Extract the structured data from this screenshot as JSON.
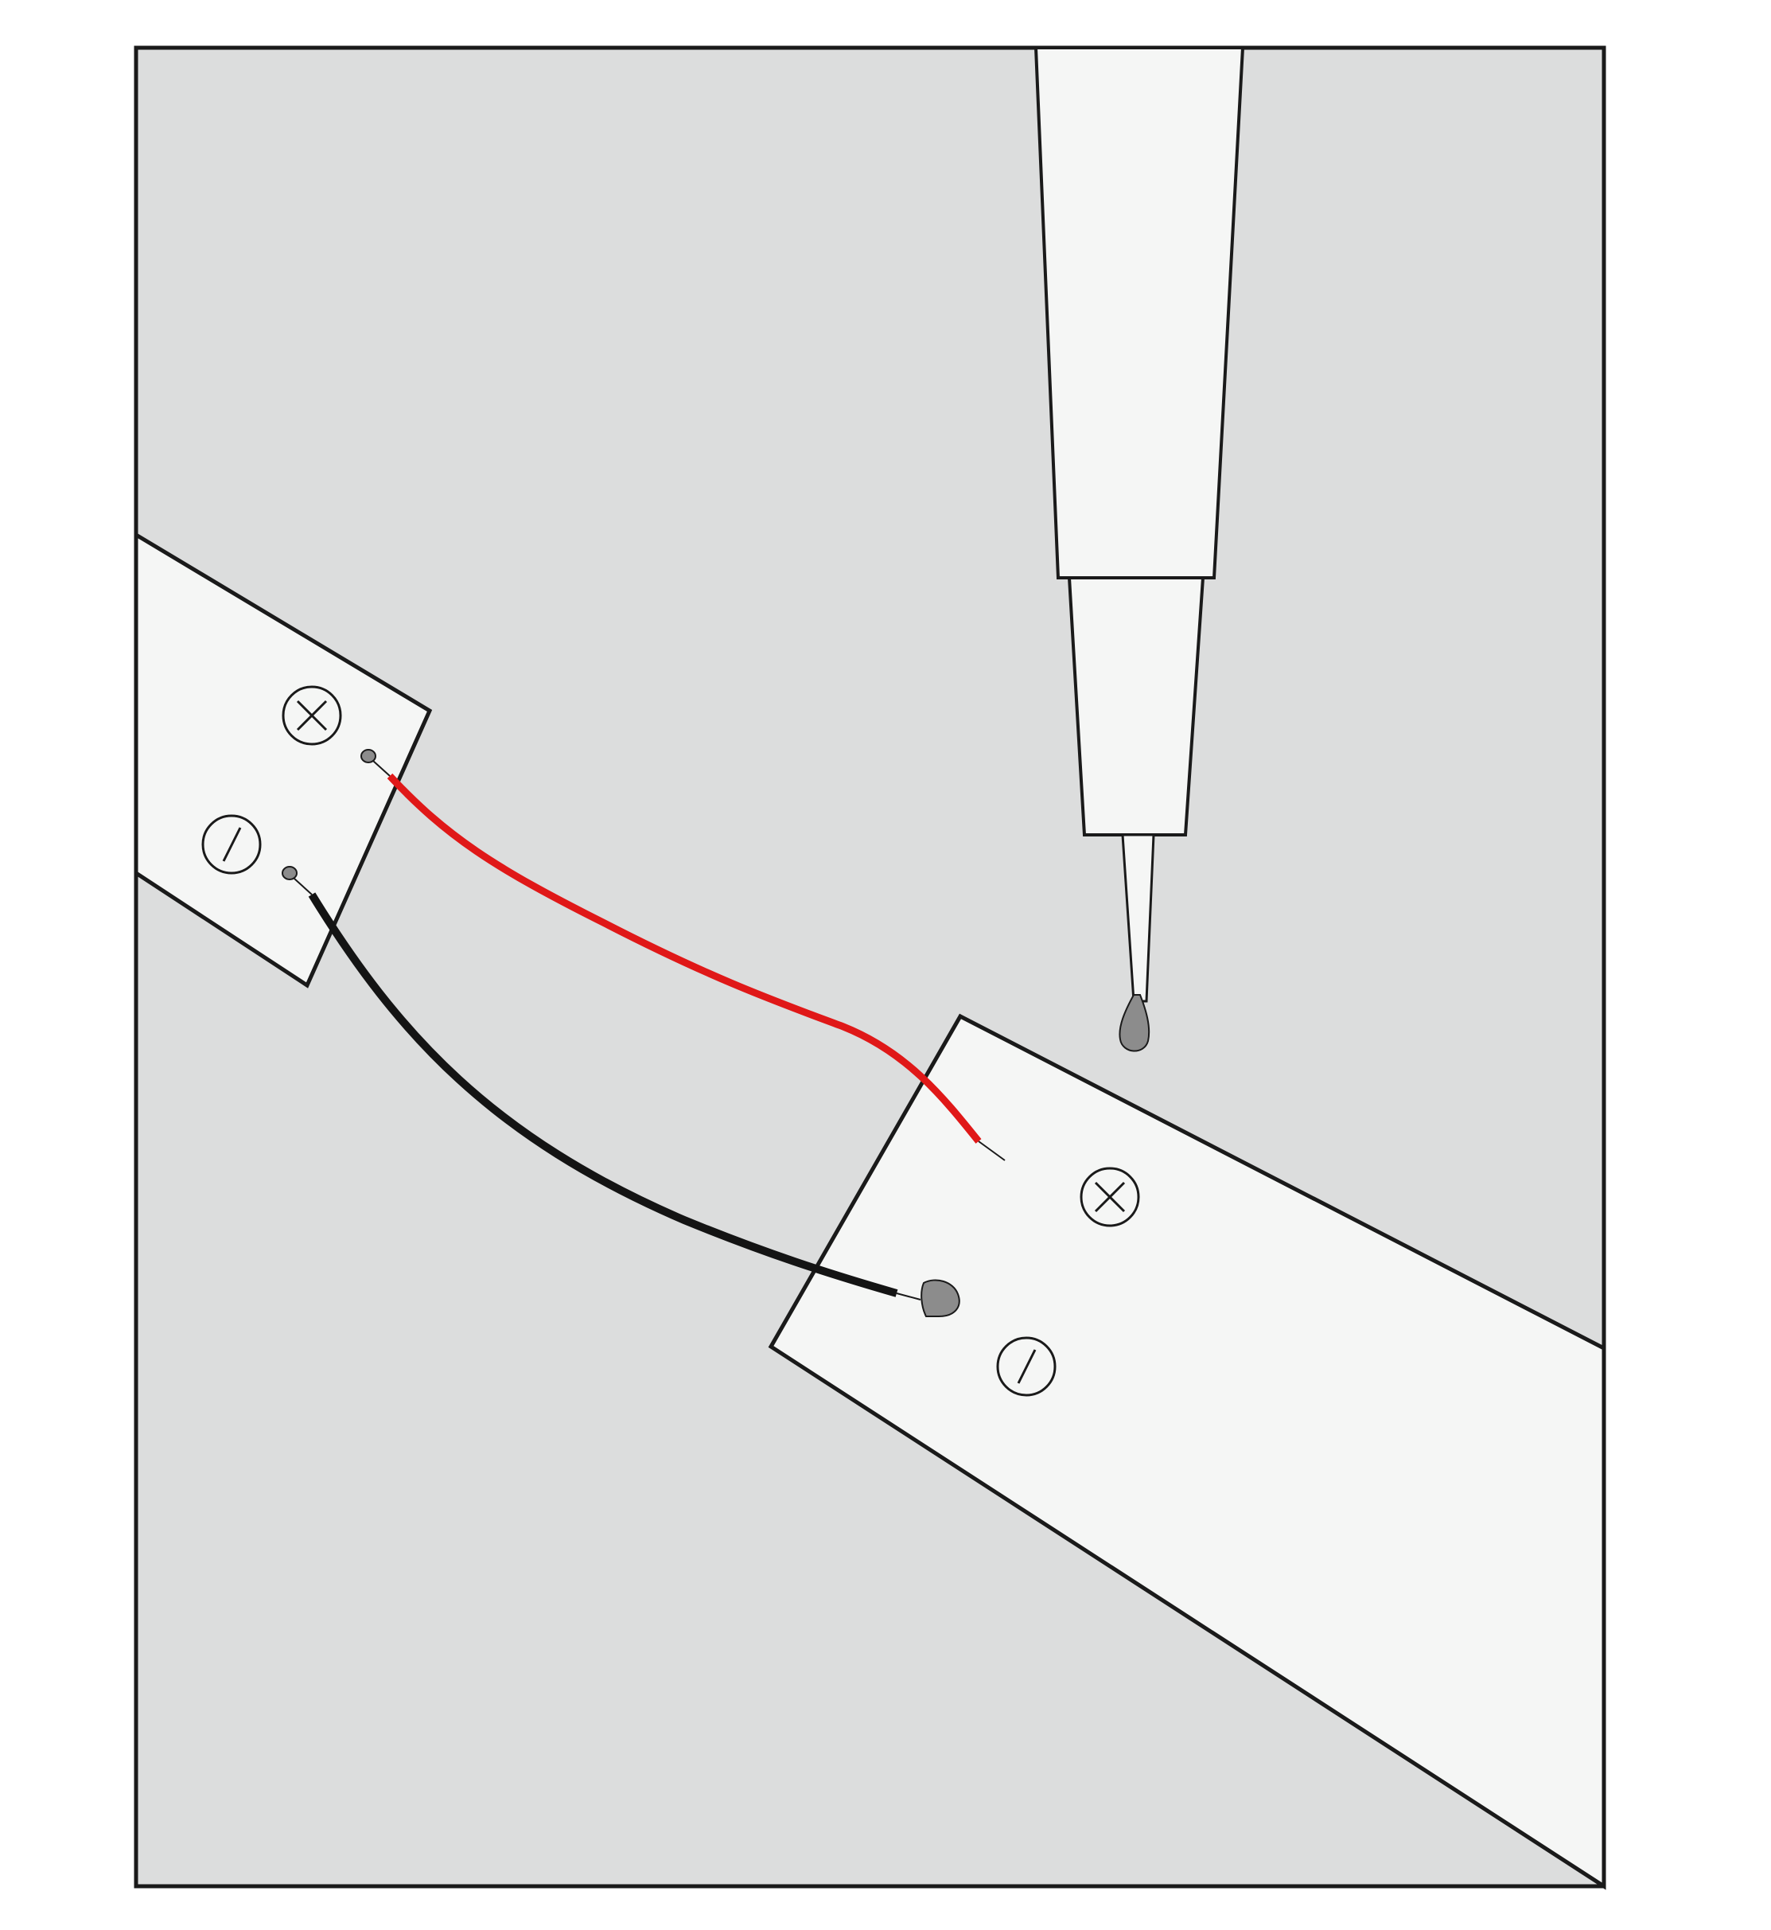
{
  "diagram": {
    "subject": "soldering-wires-between-led-strip-segments",
    "colors": {
      "background_panel": "#dcdddd",
      "strip": "#f5f6f5",
      "outline": "#1a1a1a",
      "red_wire": "#e01818",
      "black_wire": "#141414",
      "solder": "#8c8c8c",
      "page": "#ffffff"
    },
    "icons": {
      "positive_pad": "plus-circle-icon",
      "negative_pad": "slash-circle-icon",
      "soldering_iron": "soldering-iron-icon"
    }
  }
}
